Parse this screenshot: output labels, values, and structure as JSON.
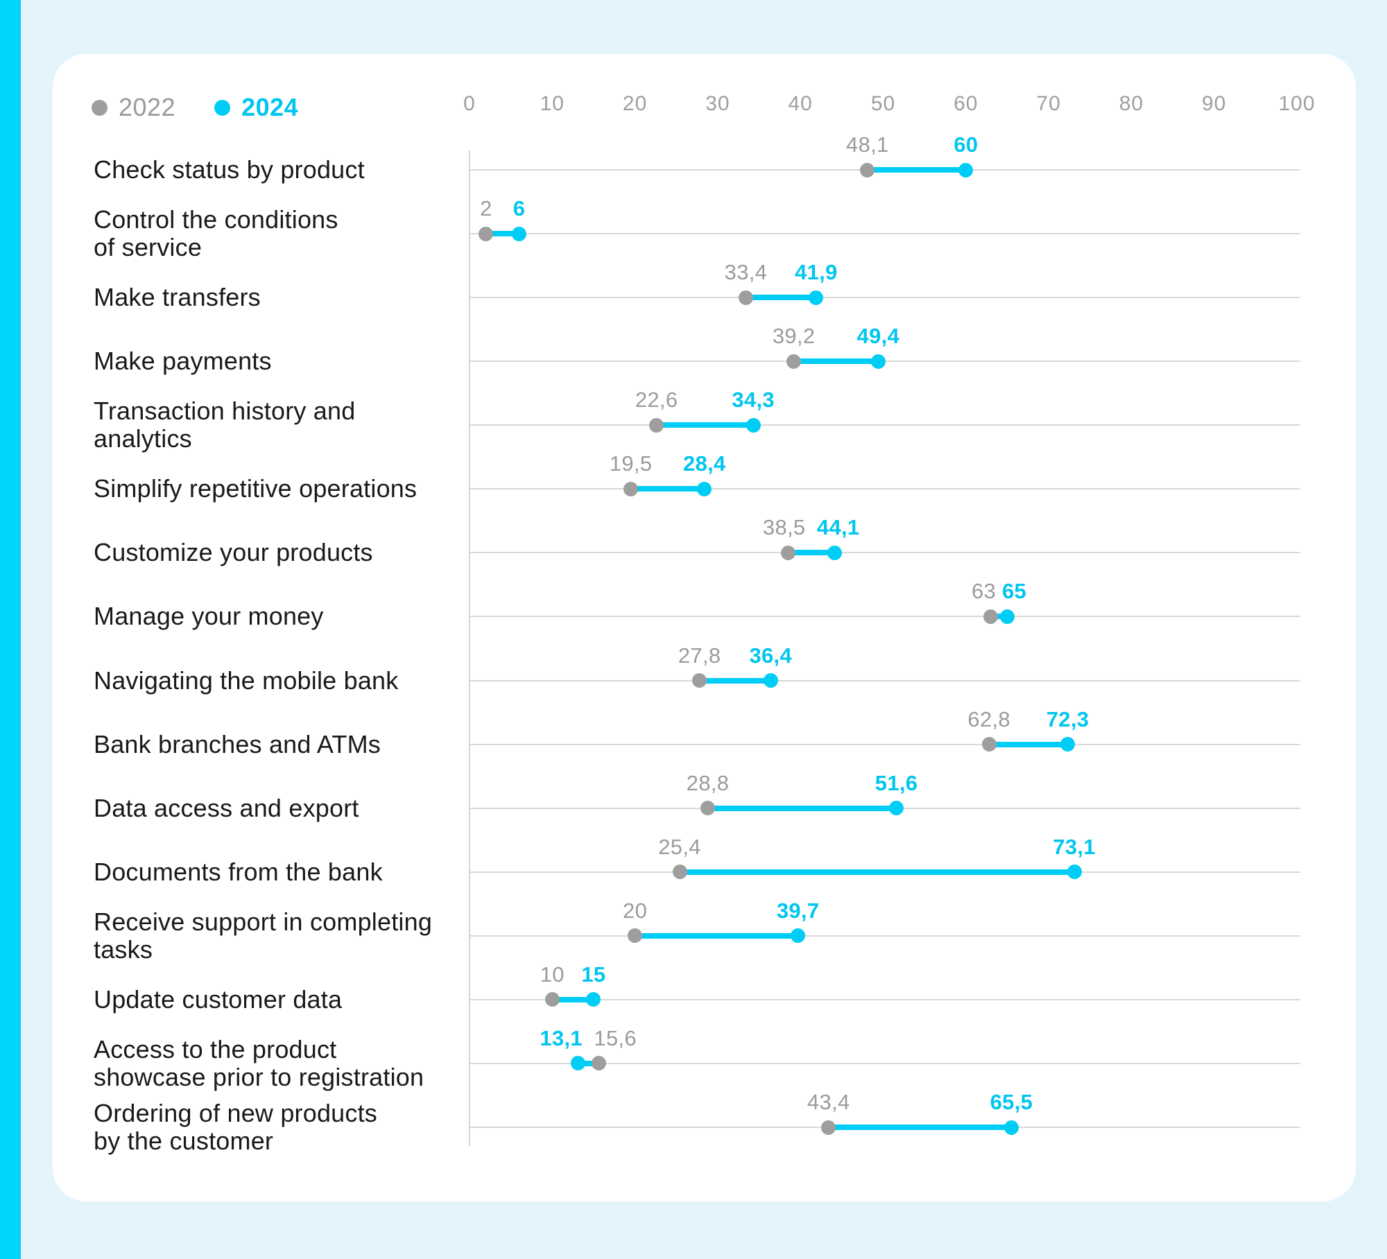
{
  "page": {
    "background_color": "#e4f4fb",
    "stripe_color": "#00d5fd",
    "card_color": "#ffffff"
  },
  "legend": {
    "items": [
      {
        "label": "2022",
        "color": "#9e9e9e"
      },
      {
        "label": "2024",
        "color": "#00c6ef"
      }
    ]
  },
  "chart_data": {
    "type": "scatter",
    "variant": "horizontal-dumbbell",
    "title": "",
    "xlabel": "",
    "ylabel": "",
    "x_axis": {
      "min": 0,
      "max": 100,
      "ticks": [
        0,
        10,
        20,
        30,
        40,
        50,
        60,
        70,
        80,
        90,
        100
      ],
      "position": "top",
      "grid": "one-horizontal-line-per-category"
    },
    "series_names": [
      "2022",
      "2024"
    ],
    "series_colors": {
      "2022": "#9e9e9e",
      "2024": "#00cdf5"
    },
    "rows": [
      {
        "label_lines": [
          "Check status by product"
        ],
        "v2022": 48.1,
        "v2024": 60,
        "d2022": "48,1",
        "d2024": "60"
      },
      {
        "label_lines": [
          "Control the conditions",
          "of service"
        ],
        "v2022": 2,
        "v2024": 6,
        "d2022": "2",
        "d2024": "6"
      },
      {
        "label_lines": [
          "Make transfers"
        ],
        "v2022": 33.4,
        "v2024": 41.9,
        "d2022": "33,4",
        "d2024": "41,9"
      },
      {
        "label_lines": [
          "Make payments"
        ],
        "v2022": 39.2,
        "v2024": 49.4,
        "d2022": "39,2",
        "d2024": "49,4"
      },
      {
        "label_lines": [
          "Transaction history and",
          "analytics"
        ],
        "v2022": 22.6,
        "v2024": 34.3,
        "d2022": "22,6",
        "d2024": "34,3"
      },
      {
        "label_lines": [
          "Simplify repetitive operations"
        ],
        "v2022": 19.5,
        "v2024": 28.4,
        "d2022": "19,5",
        "d2024": "28,4"
      },
      {
        "label_lines": [
          "Customize your products"
        ],
        "v2022": 38.5,
        "v2024": 44.1,
        "d2022": "38,5",
        "d2024": "44,1"
      },
      {
        "label_lines": [
          "Manage your money"
        ],
        "v2022": 63,
        "v2024": 65,
        "d2022": "63",
        "d2024": "65"
      },
      {
        "label_lines": [
          "Navigating the mobile bank"
        ],
        "v2022": 27.8,
        "v2024": 36.4,
        "d2022": "27,8",
        "d2024": "36,4"
      },
      {
        "label_lines": [
          "Bank branches and ATMs"
        ],
        "v2022": 62.8,
        "v2024": 72.3,
        "d2022": "62,8",
        "d2024": "72,3"
      },
      {
        "label_lines": [
          "Data access and export"
        ],
        "v2022": 28.8,
        "v2024": 51.6,
        "d2022": "28,8",
        "d2024": "51,6"
      },
      {
        "label_lines": [
          "Documents from the bank"
        ],
        "v2022": 25.4,
        "v2024": 73.1,
        "d2022": "25,4",
        "d2024": "73,1"
      },
      {
        "label_lines": [
          "Receive support in completing",
          "tasks"
        ],
        "v2022": 20,
        "v2024": 39.7,
        "d2022": "20",
        "d2024": "39,7"
      },
      {
        "label_lines": [
          "Update customer data"
        ],
        "v2022": 10,
        "v2024": 15,
        "d2022": "10",
        "d2024": "15"
      },
      {
        "label_lines": [
          "Access to the product",
          "showcase prior to registration"
        ],
        "v2022": 15.6,
        "v2024": 13.1,
        "d2022": "15,6",
        "d2024": "13,1"
      },
      {
        "label_lines": [
          "Ordering of new products",
          "by the customer"
        ],
        "v2022": 43.4,
        "v2024": 65.5,
        "d2022": "43,4",
        "d2024": "65,5"
      }
    ]
  }
}
